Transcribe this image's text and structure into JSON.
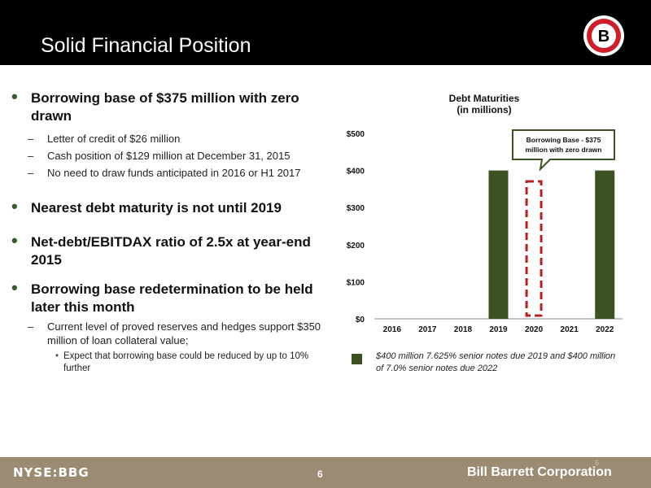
{
  "slide": {
    "title": "Solid Financial Position"
  },
  "bullets": [
    {
      "text": "Borrowing base of $375 million with zero drawn",
      "subs": [
        {
          "text": "Letter of credit of $26 million"
        },
        {
          "text": "Cash position of $129 million at December 31, 2015"
        },
        {
          "text": "No need to draw funds anticipated in 2016 or H1 2017"
        }
      ]
    },
    {
      "text": "Nearest debt maturity is not until 2019"
    },
    {
      "text": "Net-debt/EBITDAX ratio of 2.5x at year-end 2015"
    },
    {
      "text": "Borrowing base redetermination to be held later this month",
      "subs": [
        {
          "text": "Current level of proved reserves and hedges support $350 million of loan collateral value;"
        }
      ],
      "subsubs": [
        {
          "text": "Expect that borrowing base could be reduced by up to 10% further"
        }
      ]
    }
  ],
  "chart_data": {
    "type": "bar",
    "title": "Debt Maturities",
    "subtitle": "(in millions)",
    "categories": [
      "2016",
      "2017",
      "2018",
      "2019",
      "2020",
      "2021",
      "2022"
    ],
    "values": [
      0,
      0,
      0,
      400,
      0,
      0,
      400
    ],
    "y_ticks": [
      "$0",
      "$100",
      "$200",
      "$300",
      "$400",
      "$500"
    ],
    "ylim": [
      0,
      500
    ],
    "bar_color": "#3d5223",
    "highlight": {
      "category": "2020",
      "value": 375,
      "label": "Borrowing Base - $375 million with zero drawn",
      "color": "#b22222"
    },
    "legend": "$400 million 7.625% senior notes due 2019 and $400 million of 7.0% senior notes due 2022"
  },
  "footer": {
    "ticker": "NYSE:BBG",
    "page_number": "6",
    "company": "Bill Barrett Corporation",
    "ghost_number": "6"
  },
  "logo": {
    "letter": "B"
  }
}
